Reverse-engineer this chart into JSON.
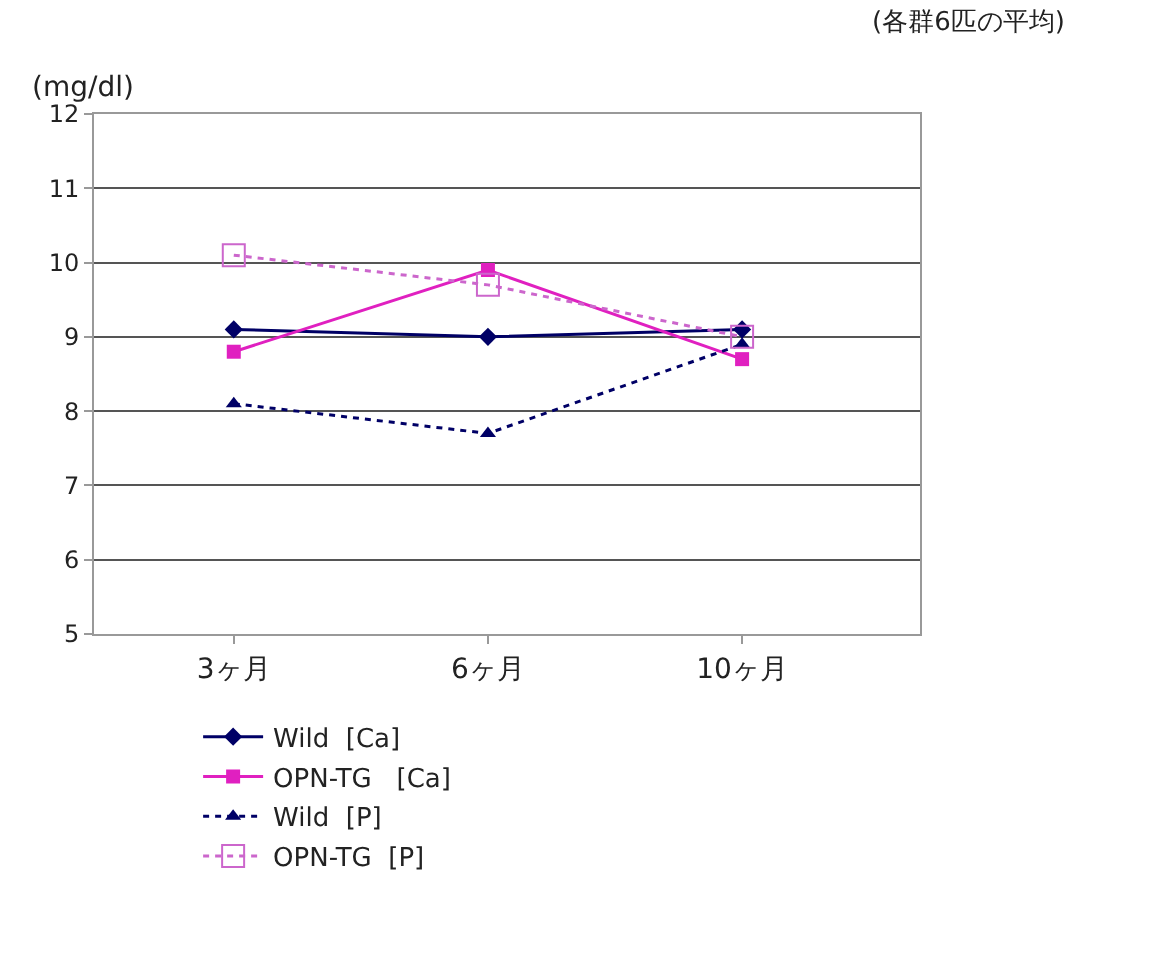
{
  "chart_data": {
    "type": "line",
    "ylabel": "(mg/dl)",
    "annotations": [
      "(各群6匹の平均)"
    ],
    "categories": [
      "3ヶ月",
      "6ヶ月",
      "10ヶ月"
    ],
    "series": [
      {
        "name": "Wild  [Ca]",
        "color": "#000066",
        "values": [
          9.1,
          9.0,
          9.1
        ],
        "marker": "diamond",
        "line_style": "solid"
      },
      {
        "name": "OPN-TG   [Ca]",
        "color": "#e020c0",
        "values": [
          8.8,
          9.9,
          8.7
        ],
        "marker": "square",
        "line_style": "solid"
      },
      {
        "name": "Wild  [P]",
        "color": "#000066",
        "values": [
          8.1,
          7.7,
          8.9
        ],
        "marker": "triangle",
        "line_style": "dotted"
      },
      {
        "name": "OPN-TG  [P]",
        "color": "#cc66cc",
        "values": [
          10.1,
          9.7,
          9.0
        ],
        "marker": "square-open",
        "line_style": "dotted"
      }
    ],
    "ylim": [
      5,
      12
    ],
    "yticks": [
      5,
      6,
      7,
      8,
      9,
      10,
      11,
      12
    ],
    "grid": "y",
    "legend": "bottom"
  }
}
